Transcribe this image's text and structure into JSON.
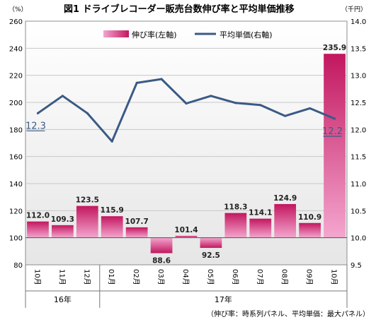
{
  "chart_data": {
    "type": "bar",
    "title": "図1 ドライブレコーダー販売台数伸び率と平均単価推移",
    "left_unit": "（%）",
    "right_unit": "（千円）",
    "categories": [
      "10月",
      "11月",
      "12月",
      "01月",
      "02月",
      "03月",
      "04月",
      "05月",
      "06月",
      "07月",
      "08月",
      "09月",
      "10月"
    ],
    "groups": [
      {
        "label": "16年",
        "from": 0,
        "to": 2
      },
      {
        "label": "17年",
        "from": 3,
        "to": 12
      }
    ],
    "series": [
      {
        "name": "伸び率(左軸)",
        "type": "bar",
        "axis": "left",
        "values": [
          112.0,
          109.3,
          123.5,
          115.9,
          107.7,
          88.6,
          101.4,
          92.5,
          118.3,
          114.1,
          124.9,
          110.9,
          235.9
        ],
        "labels": [
          "112.0",
          "109.3",
          "123.5",
          "115.9",
          "107.7",
          "88.6",
          "101.4",
          "92.5",
          "118.3",
          "114.1",
          "124.9",
          "110.9",
          "235.9"
        ]
      },
      {
        "name": "平均単価(右軸)",
        "type": "line",
        "axis": "right",
        "values": [
          12.3,
          12.62,
          12.3,
          11.78,
          12.86,
          12.93,
          12.48,
          12.62,
          12.49,
          12.45,
          12.25,
          12.39,
          12.2
        ],
        "labels": [
          "12.3",
          "",
          "",
          "",
          "",
          "",
          "",
          "",
          "",
          "",
          "",
          "",
          "12.2"
        ]
      }
    ],
    "ylim_left": [
      80,
      260
    ],
    "yticks_left": [
      "80",
      "100",
      "120",
      "140",
      "160",
      "180",
      "200",
      "220",
      "240",
      "260"
    ],
    "ylim_right": [
      9.5,
      14.0
    ],
    "yticks_right": [
      "9.5",
      "10.0",
      "10.5",
      "11.0",
      "11.5",
      "12.0",
      "12.5",
      "13.0",
      "13.5",
      "14.0"
    ],
    "baseline": 100,
    "grid": true,
    "legend_position": "top",
    "footnote": "（伸び率：時系列パネル、平均単価：最大パネル）",
    "colors": {
      "bar_light": "#f4a6cf",
      "bar_dark": "#c2175f",
      "line": "#3a5a85",
      "plot_bg_top": "#ffffff",
      "plot_bg_bottom": "#e6e6e6"
    }
  }
}
